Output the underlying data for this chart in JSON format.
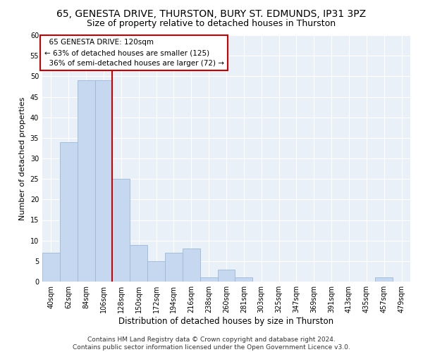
{
  "title": "65, GENESTA DRIVE, THURSTON, BURY ST. EDMUNDS, IP31 3PZ",
  "subtitle": "Size of property relative to detached houses in Thurston",
  "xlabel": "Distribution of detached houses by size in Thurston",
  "ylabel": "Number of detached properties",
  "bar_color": "#c5d8ef",
  "bar_edge_color": "#9ab8d8",
  "annotation_line_color": "#cc0000",
  "annotation_box_color": "#cc0000",
  "background_color": "#eaf0f8",
  "grid_color": "#ffffff",
  "categories": [
    "40sqm",
    "62sqm",
    "84sqm",
    "106sqm",
    "128sqm",
    "150sqm",
    "172sqm",
    "194sqm",
    "216sqm",
    "238sqm",
    "260sqm",
    "281sqm",
    "303sqm",
    "325sqm",
    "347sqm",
    "369sqm",
    "391sqm",
    "413sqm",
    "435sqm",
    "457sqm",
    "479sqm"
  ],
  "values": [
    7,
    34,
    49,
    49,
    25,
    9,
    5,
    7,
    8,
    1,
    3,
    1,
    0,
    0,
    0,
    0,
    0,
    0,
    0,
    1,
    0
  ],
  "ylim": [
    0,
    60
  ],
  "yticks": [
    0,
    5,
    10,
    15,
    20,
    25,
    30,
    35,
    40,
    45,
    50,
    55,
    60
  ],
  "property_label": "65 GENESTA DRIVE: 120sqm",
  "pct_smaller": "63% of detached houses are smaller (125)",
  "pct_larger": "36% of semi-detached houses are larger (72)",
  "footer": "Contains HM Land Registry data © Crown copyright and database right 2024.\nContains public sector information licensed under the Open Government Licence v3.0.",
  "annotation_fontsize": 7.5,
  "title_fontsize": 10,
  "subtitle_fontsize": 9,
  "xlabel_fontsize": 8.5,
  "ylabel_fontsize": 8,
  "tick_fontsize": 7,
  "footer_fontsize": 6.5
}
